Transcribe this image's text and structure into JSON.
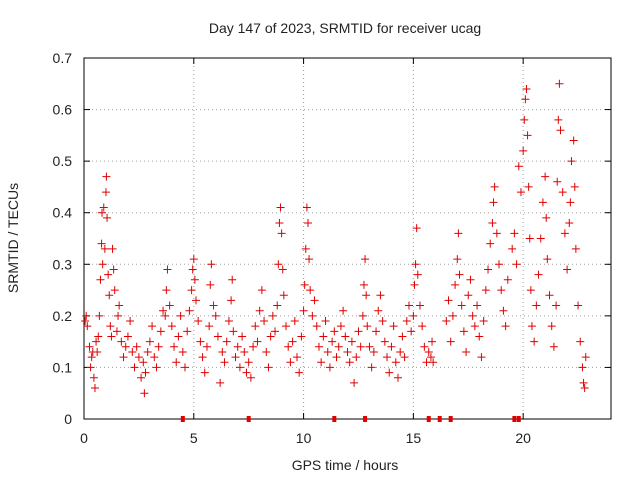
{
  "chart_data": {
    "type": "scatter",
    "title": "Day 147 of 2023, SRMTID for receiver ucag",
    "xlabel": "GPS time / hours",
    "ylabel": "SRMTID / TECUs",
    "xlim": [
      0,
      24
    ],
    "ylim": [
      0,
      0.7
    ],
    "xticks": [
      0,
      5,
      10,
      15,
      20
    ],
    "yticks": [
      0,
      0.1,
      0.2,
      0.3,
      0.4,
      0.5,
      0.6,
      0.7
    ],
    "xtick_labels": [
      "0",
      "5",
      "10",
      "15",
      "20"
    ],
    "ytick_labels": [
      "0",
      "0.1",
      "0.2",
      "0.3",
      "0.4",
      "0.5",
      "0.6",
      "0.7"
    ],
    "grid": true,
    "marker": "+",
    "color": "#e00000",
    "series": [
      {
        "name": "SRMTID",
        "points": [
          [
            0.05,
            0.19
          ],
          [
            0.1,
            0.2
          ],
          [
            0.15,
            0.18
          ],
          [
            0.25,
            0.14
          ],
          [
            0.3,
            0.1
          ],
          [
            0.35,
            0.12
          ],
          [
            0.4,
            0.13
          ],
          [
            0.45,
            0.08
          ],
          [
            0.5,
            0.06
          ],
          [
            0.55,
            0.15
          ],
          [
            0.6,
            0.13
          ],
          [
            0.65,
            0.16
          ],
          [
            0.7,
            0.2
          ],
          [
            0.75,
            0.27
          ],
          [
            0.8,
            0.34
          ],
          [
            0.82,
            0.4
          ],
          [
            0.85,
            0.3
          ],
          [
            0.9,
            0.41
          ],
          [
            0.95,
            0.33
          ],
          [
            1.0,
            0.44
          ],
          [
            1.02,
            0.47
          ],
          [
            1.05,
            0.39
          ],
          [
            1.1,
            0.28
          ],
          [
            1.15,
            0.24
          ],
          [
            1.2,
            0.18
          ],
          [
            1.25,
            0.16
          ],
          [
            1.3,
            0.33
          ],
          [
            1.35,
            0.29
          ],
          [
            1.4,
            0.25
          ],
          [
            1.5,
            0.17
          ],
          [
            1.55,
            0.2
          ],
          [
            1.6,
            0.22
          ],
          [
            1.7,
            0.15
          ],
          [
            1.8,
            0.12
          ],
          [
            1.9,
            0.14
          ],
          [
            2.0,
            0.16
          ],
          [
            2.1,
            0.19
          ],
          [
            2.2,
            0.13
          ],
          [
            2.3,
            0.1
          ],
          [
            2.4,
            0.14
          ],
          [
            2.5,
            0.12
          ],
          [
            2.6,
            0.08
          ],
          [
            2.7,
            0.11
          ],
          [
            2.75,
            0.05
          ],
          [
            2.8,
            0.09
          ],
          [
            2.9,
            0.13
          ],
          [
            3.0,
            0.15
          ],
          [
            3.1,
            0.18
          ],
          [
            3.2,
            0.12
          ],
          [
            3.3,
            0.1
          ],
          [
            3.4,
            0.14
          ],
          [
            3.5,
            0.17
          ],
          [
            3.6,
            0.21
          ],
          [
            3.7,
            0.2
          ],
          [
            3.75,
            0.25
          ],
          [
            3.8,
            0.29
          ],
          [
            3.9,
            0.22
          ],
          [
            4.0,
            0.18
          ],
          [
            4.1,
            0.14
          ],
          [
            4.2,
            0.11
          ],
          [
            4.3,
            0.16
          ],
          [
            4.4,
            0.2
          ],
          [
            4.5,
            0.13
          ],
          [
            4.6,
            0.1
          ],
          [
            4.7,
            0.17
          ],
          [
            4.8,
            0.21
          ],
          [
            4.9,
            0.25
          ],
          [
            4.95,
            0.29
          ],
          [
            5.0,
            0.31
          ],
          [
            5.05,
            0.27
          ],
          [
            5.1,
            0.23
          ],
          [
            5.2,
            0.19
          ],
          [
            5.3,
            0.15
          ],
          [
            5.4,
            0.12
          ],
          [
            5.5,
            0.09
          ],
          [
            5.6,
            0.14
          ],
          [
            5.7,
            0.18
          ],
          [
            5.75,
            0.26
          ],
          [
            5.8,
            0.3
          ],
          [
            5.9,
            0.22
          ],
          [
            6.0,
            0.2
          ],
          [
            6.1,
            0.16
          ],
          [
            6.2,
            0.07
          ],
          [
            6.3,
            0.13
          ],
          [
            6.4,
            0.11
          ],
          [
            6.5,
            0.15
          ],
          [
            6.6,
            0.19
          ],
          [
            6.7,
            0.23
          ],
          [
            6.75,
            0.27
          ],
          [
            6.8,
            0.17
          ],
          [
            6.9,
            0.12
          ],
          [
            7.0,
            0.14
          ],
          [
            7.1,
            0.1
          ],
          [
            7.2,
            0.16
          ],
          [
            7.3,
            0.13
          ],
          [
            7.4,
            0.09
          ],
          [
            7.5,
            0.11
          ],
          [
            7.6,
            0.08
          ],
          [
            7.7,
            0.14
          ],
          [
            7.8,
            0.18
          ],
          [
            7.9,
            0.15
          ],
          [
            8.0,
            0.21
          ],
          [
            8.1,
            0.25
          ],
          [
            8.2,
            0.19
          ],
          [
            8.3,
            0.13
          ],
          [
            8.4,
            0.1
          ],
          [
            8.5,
            0.16
          ],
          [
            8.6,
            0.2
          ],
          [
            8.7,
            0.17
          ],
          [
            8.8,
            0.22
          ],
          [
            8.85,
            0.3
          ],
          [
            8.9,
            0.38
          ],
          [
            8.95,
            0.41
          ],
          [
            9.0,
            0.36
          ],
          [
            9.05,
            0.29
          ],
          [
            9.1,
            0.24
          ],
          [
            9.2,
            0.18
          ],
          [
            9.3,
            0.14
          ],
          [
            9.4,
            0.11
          ],
          [
            9.5,
            0.15
          ],
          [
            9.6,
            0.19
          ],
          [
            9.7,
            0.12
          ],
          [
            9.8,
            0.09
          ],
          [
            9.9,
            0.16
          ],
          [
            10.0,
            0.21
          ],
          [
            10.05,
            0.26
          ],
          [
            10.1,
            0.33
          ],
          [
            10.15,
            0.41
          ],
          [
            10.2,
            0.38
          ],
          [
            10.25,
            0.31
          ],
          [
            10.3,
            0.25
          ],
          [
            10.4,
            0.2
          ],
          [
            10.5,
            0.23
          ],
          [
            10.6,
            0.18
          ],
          [
            10.7,
            0.14
          ],
          [
            10.8,
            0.11
          ],
          [
            10.9,
            0.16
          ],
          [
            11.0,
            0.19
          ],
          [
            11.1,
            0.13
          ],
          [
            11.2,
            0.1
          ],
          [
            11.3,
            0.15
          ],
          [
            11.4,
            0.17
          ],
          [
            11.5,
            0.12
          ],
          [
            11.6,
            0.14
          ],
          [
            11.7,
            0.18
          ],
          [
            11.8,
            0.21
          ],
          [
            11.9,
            0.16
          ],
          [
            12.0,
            0.13
          ],
          [
            12.1,
            0.11
          ],
          [
            12.2,
            0.15
          ],
          [
            12.3,
            0.07
          ],
          [
            12.4,
            0.12
          ],
          [
            12.5,
            0.17
          ],
          [
            12.6,
            0.14
          ],
          [
            12.7,
            0.2
          ],
          [
            12.75,
            0.26
          ],
          [
            12.8,
            0.31
          ],
          [
            12.85,
            0.24
          ],
          [
            12.9,
            0.18
          ],
          [
            13.0,
            0.14
          ],
          [
            13.1,
            0.1
          ],
          [
            13.2,
            0.13
          ],
          [
            13.3,
            0.17
          ],
          [
            13.4,
            0.21
          ],
          [
            13.5,
            0.24
          ],
          [
            13.6,
            0.19
          ],
          [
            13.7,
            0.15
          ],
          [
            13.8,
            0.12
          ],
          [
            13.9,
            0.09
          ],
          [
            14.0,
            0.14
          ],
          [
            14.1,
            0.18
          ],
          [
            14.2,
            0.11
          ],
          [
            14.3,
            0.08
          ],
          [
            14.4,
            0.13
          ],
          [
            14.5,
            0.16
          ],
          [
            14.6,
            0.12
          ],
          [
            14.7,
            0.19
          ],
          [
            14.8,
            0.22
          ],
          [
            14.9,
            0.17
          ],
          [
            15.0,
            0.2
          ],
          [
            15.05,
            0.26
          ],
          [
            15.1,
            0.3
          ],
          [
            15.15,
            0.37
          ],
          [
            15.2,
            0.28
          ],
          [
            15.3,
            0.22
          ],
          [
            15.4,
            0.18
          ],
          [
            15.5,
            0.14
          ],
          [
            15.6,
            0.11
          ],
          [
            15.7,
            0.13
          ],
          [
            15.8,
            0.12
          ],
          [
            15.85,
            0.15
          ],
          [
            15.9,
            0.11
          ],
          [
            16.5,
            0.19
          ],
          [
            16.6,
            0.23
          ],
          [
            16.7,
            0.15
          ],
          [
            16.8,
            0.2
          ],
          [
            16.9,
            0.26
          ],
          [
            17.0,
            0.31
          ],
          [
            17.05,
            0.36
          ],
          [
            17.1,
            0.28
          ],
          [
            17.2,
            0.22
          ],
          [
            17.3,
            0.17
          ],
          [
            17.4,
            0.13
          ],
          [
            17.5,
            0.24
          ],
          [
            17.6,
            0.27
          ],
          [
            17.7,
            0.2
          ],
          [
            17.8,
            0.18
          ],
          [
            17.9,
            0.22
          ],
          [
            18.0,
            0.16
          ],
          [
            18.1,
            0.12
          ],
          [
            18.2,
            0.19
          ],
          [
            18.3,
            0.25
          ],
          [
            18.4,
            0.29
          ],
          [
            18.5,
            0.34
          ],
          [
            18.6,
            0.38
          ],
          [
            18.65,
            0.42
          ],
          [
            18.7,
            0.45
          ],
          [
            18.8,
            0.36
          ],
          [
            18.9,
            0.3
          ],
          [
            19.0,
            0.25
          ],
          [
            19.1,
            0.21
          ],
          [
            19.2,
            0.18
          ],
          [
            19.3,
            0.27
          ],
          [
            19.5,
            0.33
          ],
          [
            19.6,
            0.36
          ],
          [
            19.7,
            0.3
          ],
          [
            19.8,
            0.49
          ],
          [
            19.9,
            0.44
          ],
          [
            20.0,
            0.52
          ],
          [
            20.05,
            0.58
          ],
          [
            20.1,
            0.62
          ],
          [
            20.15,
            0.64
          ],
          [
            20.2,
            0.55
          ],
          [
            20.25,
            0.45
          ],
          [
            20.3,
            0.35
          ],
          [
            20.35,
            0.25
          ],
          [
            20.4,
            0.18
          ],
          [
            20.5,
            0.15
          ],
          [
            20.6,
            0.22
          ],
          [
            20.7,
            0.28
          ],
          [
            20.8,
            0.35
          ],
          [
            20.9,
            0.42
          ],
          [
            21.0,
            0.47
          ],
          [
            21.05,
            0.39
          ],
          [
            21.1,
            0.31
          ],
          [
            21.2,
            0.24
          ],
          [
            21.3,
            0.18
          ],
          [
            21.4,
            0.14
          ],
          [
            21.5,
            0.22
          ],
          [
            21.55,
            0.46
          ],
          [
            21.6,
            0.58
          ],
          [
            21.65,
            0.65
          ],
          [
            21.7,
            0.56
          ],
          [
            21.8,
            0.44
          ],
          [
            21.9,
            0.36
          ],
          [
            22.0,
            0.29
          ],
          [
            22.1,
            0.38
          ],
          [
            22.15,
            0.42
          ],
          [
            22.2,
            0.5
          ],
          [
            22.3,
            0.54
          ],
          [
            22.35,
            0.45
          ],
          [
            22.4,
            0.33
          ],
          [
            22.5,
            0.22
          ],
          [
            22.6,
            0.15
          ],
          [
            22.7,
            0.1
          ],
          [
            22.75,
            0.07
          ],
          [
            22.8,
            0.06
          ],
          [
            22.85,
            0.12
          ]
        ]
      }
    ],
    "zero_markers_x": [
      4.5,
      7.5,
      11.4,
      12.8,
      15.7,
      16.2,
      16.7,
      19.6,
      19.8
    ]
  }
}
